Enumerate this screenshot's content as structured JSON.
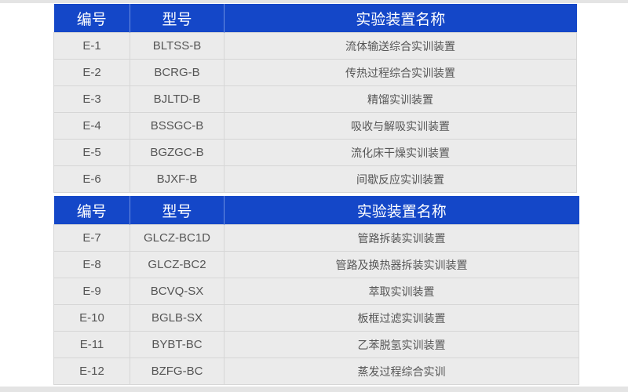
{
  "headers": {
    "id": "编号",
    "model": "型号",
    "name": "实验装置名称"
  },
  "colors": {
    "header_bg": "#1447c8",
    "row_bg": "#ebebeb"
  },
  "tables": [
    {
      "rows": [
        {
          "id": "E-1",
          "model": "BLTSS-B",
          "name": "流体输送综合实训装置"
        },
        {
          "id": "E-2",
          "model": "BCRG-B",
          "name": "传热过程综合实训装置"
        },
        {
          "id": "E-3",
          "model": "BJLTD-B",
          "name": "精馏实训装置"
        },
        {
          "id": "E-4",
          "model": "BSSGC-B",
          "name": "吸收与解吸实训装置"
        },
        {
          "id": "E-5",
          "model": "BGZGC-B",
          "name": "流化床干燥实训装置"
        },
        {
          "id": "E-6",
          "model": "BJXF-B",
          "name": "间歇反应实训装置"
        }
      ]
    },
    {
      "rows": [
        {
          "id": "E-7",
          "model": "GLCZ-BC1D",
          "name": "管路拆装实训装置"
        },
        {
          "id": "E-8",
          "model": "GLCZ-BC2",
          "name": "管路及换热器拆装实训装置"
        },
        {
          "id": "E-9",
          "model": "BCVQ-SX",
          "name": "萃取实训装置"
        },
        {
          "id": "E-10",
          "model": "BGLB-SX",
          "name": "板框过滤实训装置"
        },
        {
          "id": "E-11",
          "model": "BYBT-BC",
          "name": "乙苯脱氢实训装置"
        },
        {
          "id": "E-12",
          "model": "BZFG-BC",
          "name": "蒸发过程综合实训"
        }
      ]
    }
  ]
}
